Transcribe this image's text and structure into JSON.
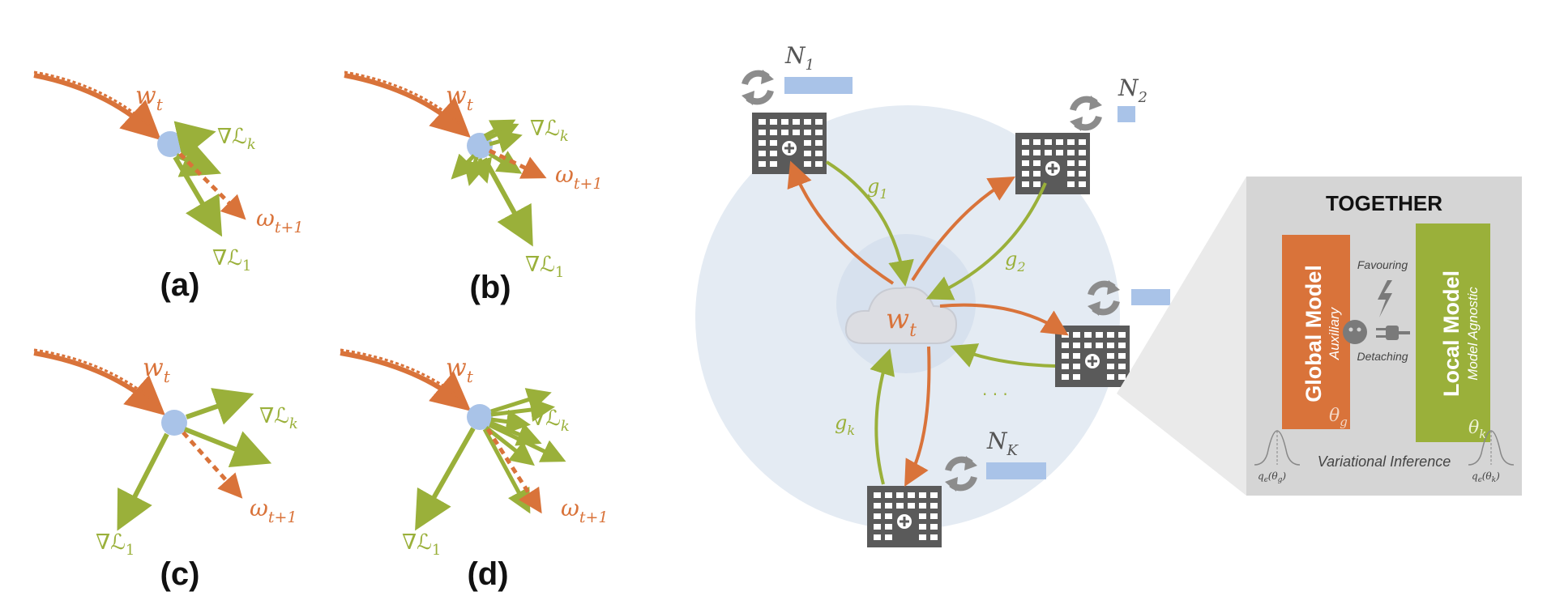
{
  "panels": [
    {
      "id": "a",
      "label": "(a)",
      "wt": "w",
      "wt_sub": "t",
      "grad_k": "∇ℒ",
      "grad_k_sub": "k",
      "grad_1": "∇ℒ",
      "grad_1_sub": "1",
      "next": "ω",
      "next_sub": "t+1"
    },
    {
      "id": "b",
      "label": "(b)",
      "wt": "w",
      "wt_sub": "t",
      "grad_k": "∇ℒ",
      "grad_k_sub": "k",
      "grad_1": "∇ℒ",
      "grad_1_sub": "1",
      "next": "ω",
      "next_sub": "t+1"
    },
    {
      "id": "c",
      "label": "(c)",
      "wt": "w",
      "wt_sub": "t",
      "grad_k": "∇ℒ",
      "grad_k_sub": "k",
      "grad_1": "∇ℒ",
      "grad_1_sub": "1",
      "next": "ω",
      "next_sub": "t+1"
    },
    {
      "id": "d",
      "label": "(d)",
      "wt": "w",
      "wt_sub": "t",
      "grad_k": "∇ℒ",
      "grad_k_sub": "k",
      "grad_1": "∇ℒ",
      "grad_1_sub": "1",
      "next": "ω",
      "next_sub": "t+1"
    }
  ],
  "network": {
    "server": {
      "w": "w",
      "sub": "t"
    },
    "nodes": [
      {
        "name": "N",
        "sub": "1"
      },
      {
        "name": "N",
        "sub": "2"
      },
      {
        "name": "N",
        "sub": "K"
      }
    ],
    "gradients": [
      {
        "name": "g",
        "sub": "1"
      },
      {
        "name": "g",
        "sub": "2"
      },
      {
        "name": "g",
        "sub": "k"
      }
    ],
    "ellipsis": "· · ·"
  },
  "together": {
    "title": "TOGETHER",
    "global": {
      "title": "Global Model",
      "subtitle": "Auxiliary",
      "param": "θ",
      "param_sub": "g"
    },
    "local": {
      "title": "Local Model",
      "subtitle": "Model Agnostic",
      "param": "θ",
      "param_sub": "k"
    },
    "favouring": "Favouring",
    "detaching": "Detaching",
    "inference": "Variational Inference",
    "q_left": "q",
    "q_left_sub": "ϵ",
    "q_left_arg": "(θ",
    "q_left_arg_sub": "g",
    "q_right": "q",
    "q_right_sub": "ϵ",
    "q_right_arg": "(θ",
    "q_right_arg_sub": "k"
  },
  "colors": {
    "orange": "#d9733a",
    "green": "#9ab03a",
    "node": "#a9c3e8",
    "building": "#5a5a5a",
    "sync_icon": "#8c8c8c",
    "circle_bg": "#e4ebf3",
    "box_bg": "#d5d5d5"
  }
}
